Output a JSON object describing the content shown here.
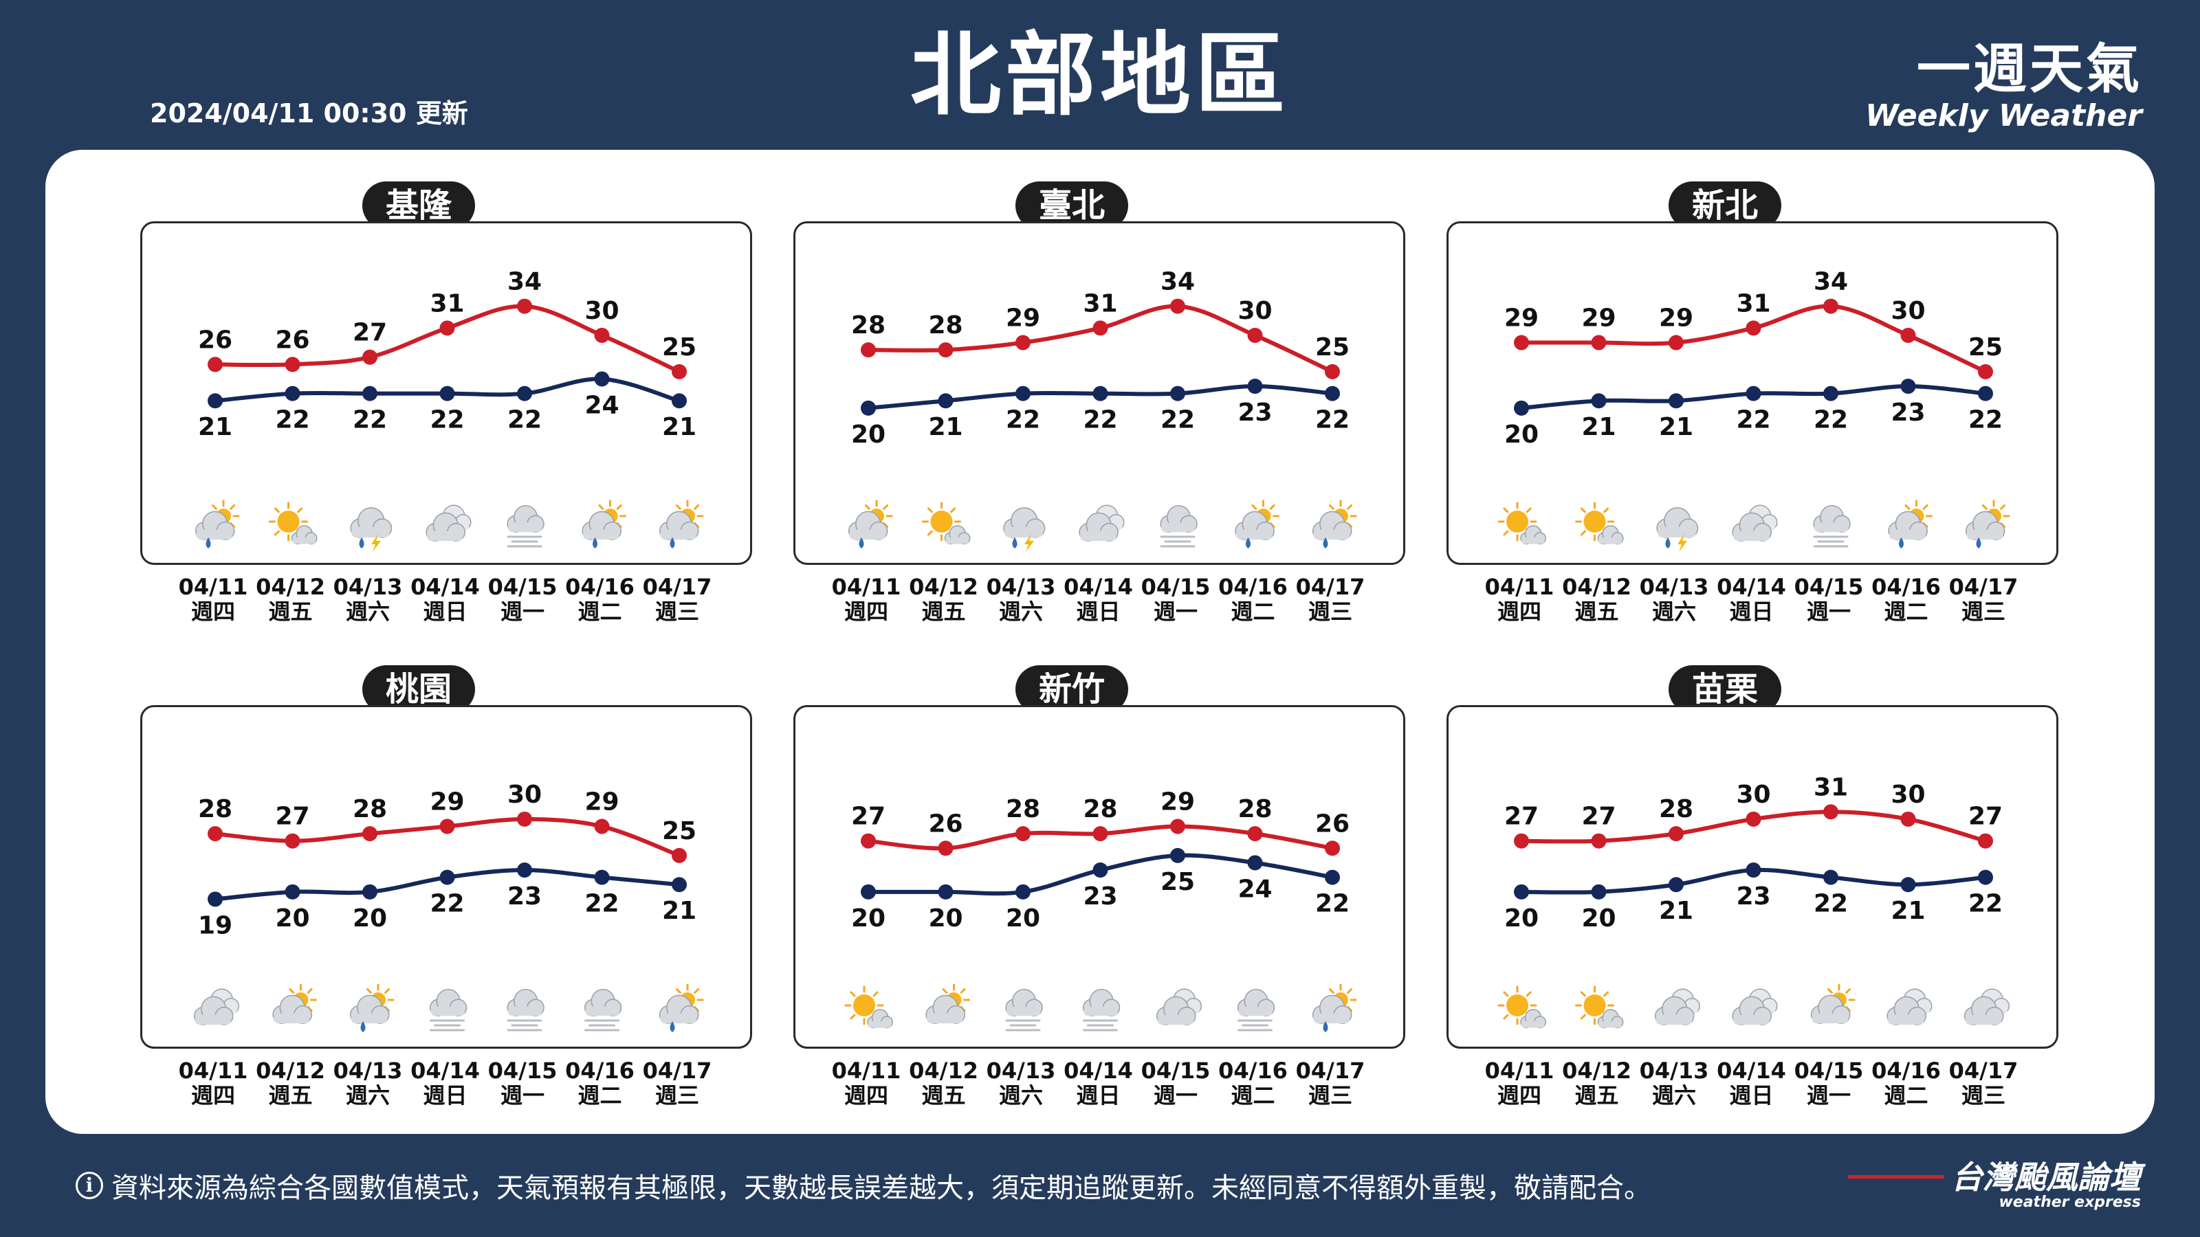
{
  "header": {
    "title": "北部地區",
    "update": "2024/04/11 00:30 更新",
    "brand_zh": "一週天氣",
    "brand_en": "Weekly Weather"
  },
  "colors": {
    "high": "#cc1e28",
    "low": "#15285a",
    "background": "#253b5c"
  },
  "cities": [
    {
      "name": "基隆",
      "high": [
        26,
        26,
        27,
        31,
        34,
        30,
        25
      ],
      "low": [
        21,
        22,
        22,
        22,
        22,
        24,
        21
      ],
      "icons": [
        "partly-cloudy-rain-icon",
        "sun-cloud-icon",
        "thunder-rain-icon",
        "cloudy-icon",
        "fog-icon",
        "partly-cloudy-rain-icon",
        "partly-cloudy-rain-icon"
      ]
    },
    {
      "name": "臺北",
      "high": [
        28,
        28,
        29,
        31,
        34,
        30,
        25
      ],
      "low": [
        20,
        21,
        22,
        22,
        22,
        23,
        22
      ],
      "icons": [
        "partly-cloudy-rain-icon",
        "sun-cloud-icon",
        "thunder-rain-icon",
        "cloudy-icon",
        "fog-icon",
        "partly-cloudy-rain-icon",
        "partly-cloudy-rain-icon"
      ]
    },
    {
      "name": "新北",
      "high": [
        29,
        29,
        29,
        31,
        34,
        30,
        25
      ],
      "low": [
        20,
        21,
        21,
        22,
        22,
        23,
        22
      ],
      "icons": [
        "sun-cloud-icon",
        "sun-cloud-icon",
        "thunder-rain-icon",
        "cloudy-icon",
        "fog-icon",
        "partly-cloudy-rain-icon",
        "partly-cloudy-rain-icon"
      ]
    },
    {
      "name": "桃園",
      "high": [
        28,
        27,
        28,
        29,
        30,
        29,
        25
      ],
      "low": [
        19,
        20,
        20,
        22,
        23,
        22,
        21
      ],
      "icons": [
        "cloudy-icon",
        "partly-cloudy-icon",
        "partly-cloudy-rain-icon",
        "fog-icon",
        "fog-icon",
        "fog-icon",
        "partly-cloudy-rain-icon"
      ]
    },
    {
      "name": "新竹",
      "high": [
        27,
        26,
        28,
        28,
        29,
        28,
        26
      ],
      "low": [
        20,
        20,
        20,
        23,
        25,
        24,
        22
      ],
      "icons": [
        "sun-cloud-icon",
        "partly-cloudy-icon",
        "fog-icon",
        "fog-icon",
        "cloudy-icon",
        "fog-icon",
        "partly-cloudy-rain-icon"
      ]
    },
    {
      "name": "苗栗",
      "high": [
        27,
        27,
        28,
        30,
        31,
        30,
        27
      ],
      "low": [
        20,
        20,
        21,
        23,
        22,
        21,
        22
      ],
      "icons": [
        "sun-cloud-icon",
        "sun-cloud-icon",
        "cloudy-icon",
        "cloudy-icon",
        "partly-cloudy-icon",
        "cloudy-icon",
        "cloudy-icon"
      ]
    }
  ],
  "dates": [
    {
      "date": "04/11",
      "weekday": "週四"
    },
    {
      "date": "04/12",
      "weekday": "週五"
    },
    {
      "date": "04/13",
      "weekday": "週六"
    },
    {
      "date": "04/14",
      "weekday": "週日"
    },
    {
      "date": "04/15",
      "weekday": "週一"
    },
    {
      "date": "04/16",
      "weekday": "週二"
    },
    {
      "date": "04/17",
      "weekday": "週三"
    }
  ],
  "footer": {
    "info_icon": "i",
    "note": "資料來源為綜合各國數值模式，天氣預報有其極限，天數越長誤差越大，須定期追蹤更新。未經同意不得額外重製，敬請配合。",
    "logo_zh": "台灣颱風論壇",
    "logo_en": "weather express"
  }
}
